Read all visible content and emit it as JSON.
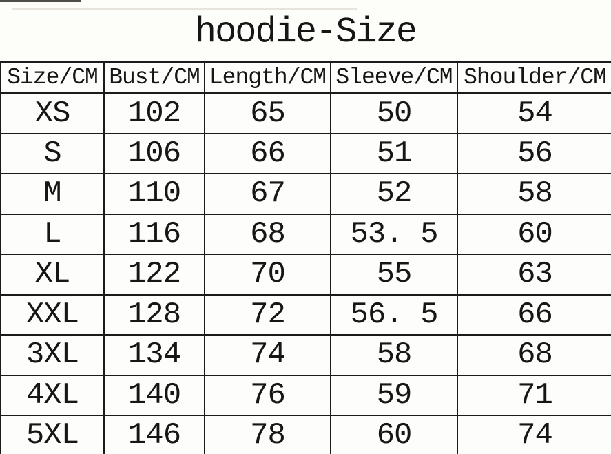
{
  "title": "hoodie-Size",
  "table": {
    "columns": [
      "Size/CM",
      "Bust/CM",
      "Length/CM",
      "Sleeve/CM",
      "Shoulder/CM"
    ],
    "rows": [
      [
        "XS",
        "102",
        "65",
        "50",
        "54"
      ],
      [
        "S",
        "106",
        "66",
        "51",
        "56"
      ],
      [
        "M",
        "110",
        "67",
        "52",
        "58"
      ],
      [
        "L",
        "116",
        "68",
        "53. 5",
        "60"
      ],
      [
        "XL",
        "122",
        "70",
        "55",
        "63"
      ],
      [
        "XXL",
        "128",
        "72",
        "56. 5",
        "66"
      ],
      [
        "3XL",
        "134",
        "74",
        "58",
        "68"
      ],
      [
        "4XL",
        "140",
        "76",
        "59",
        "71"
      ],
      [
        "5XL",
        "146",
        "78",
        "60",
        "74"
      ]
    ]
  },
  "colors": {
    "background": "#fdfdf9",
    "text": "#161616",
    "border": "#1b1b1b"
  }
}
